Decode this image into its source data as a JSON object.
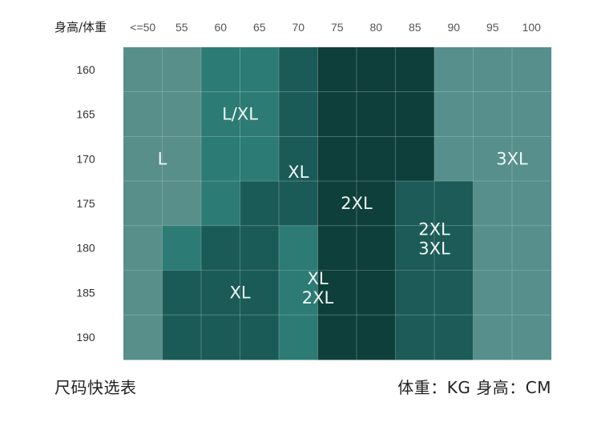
{
  "chart_data": {
    "type": "heatmap",
    "corner_label": "身高/体重",
    "x_ticks": [
      "<=50",
      "55",
      "60",
      "65",
      "70",
      "75",
      "80",
      "85",
      "90",
      "95",
      "100"
    ],
    "y_ticks": [
      "160",
      "165",
      "170",
      "175",
      "180",
      "185",
      "190"
    ],
    "cells": [
      [
        "L",
        "L",
        "L/XL",
        "L/XL",
        "XL",
        "2XL",
        "2XL",
        "2XL",
        "3XL",
        "3XL",
        "3XL"
      ],
      [
        "L",
        "L",
        "L/XL",
        "L/XL",
        "XL",
        "2XL",
        "2XL",
        "2XL",
        "3XL",
        "3XL",
        "3XL"
      ],
      [
        "L",
        "L",
        "L/XL",
        "L/XL",
        "XL",
        "2XL",
        "2XL",
        "2XL",
        "3XL",
        "3XL",
        "3XL"
      ],
      [
        "L",
        "L",
        "L/XL",
        "XL",
        "XL",
        "2XL",
        "2XL",
        "2XL/3XL",
        "2XL/3XL",
        "3XL",
        "3XL"
      ],
      [
        "L",
        "L/XL",
        "XL",
        "XL",
        "XL/2XL",
        "2XL",
        "2XL",
        "2XL/3XL",
        "2XL/3XL",
        "3XL",
        "3XL"
      ],
      [
        "L",
        "XL",
        "XL",
        "XL",
        "XL/2XL",
        "2XL",
        "2XL",
        "2XL/3XL",
        "2XL/3XL",
        "3XL",
        "3XL"
      ],
      [
        "L",
        "XL",
        "XL",
        "XL",
        "XL/2XL",
        "2XL",
        "2XL",
        "2XL/3XL",
        "2XL/3XL",
        "3XL",
        "3XL"
      ]
    ],
    "region_labels": [
      {
        "lines": [
          "L"
        ],
        "col": 1,
        "row": 2.5
      },
      {
        "lines": [
          "L/XL"
        ],
        "col": 3,
        "row": 1.5
      },
      {
        "lines": [
          "XL"
        ],
        "col": 4.5,
        "row": 2.8
      },
      {
        "lines": [
          "2XL"
        ],
        "col": 6,
        "row": 3.5
      },
      {
        "lines": [
          "3XL"
        ],
        "col": 10,
        "row": 2.5
      },
      {
        "lines": [
          "2XL",
          "3XL"
        ],
        "col": 8,
        "row": 4.3
      },
      {
        "lines": [
          "XL"
        ],
        "col": 3,
        "row": 5.5
      },
      {
        "lines": [
          "XL",
          "2XL"
        ],
        "col": 5,
        "row": 5.4
      }
    ],
    "colors": {
      "L": "#588f8a",
      "L/XL": "#2c7b74",
      "XL": "#1b5b57",
      "2XL": "#0f3f3a",
      "2XL/3XL": "#1c5b57",
      "3XL": "#568f8b",
      "XL/2XL": "#2c7b74",
      "grid_line": "#b9d2cf",
      "label_text": "#f0f7f6"
    }
  },
  "footer": {
    "left": "尺码快选表",
    "right": "体重：KG 身高：CM"
  }
}
